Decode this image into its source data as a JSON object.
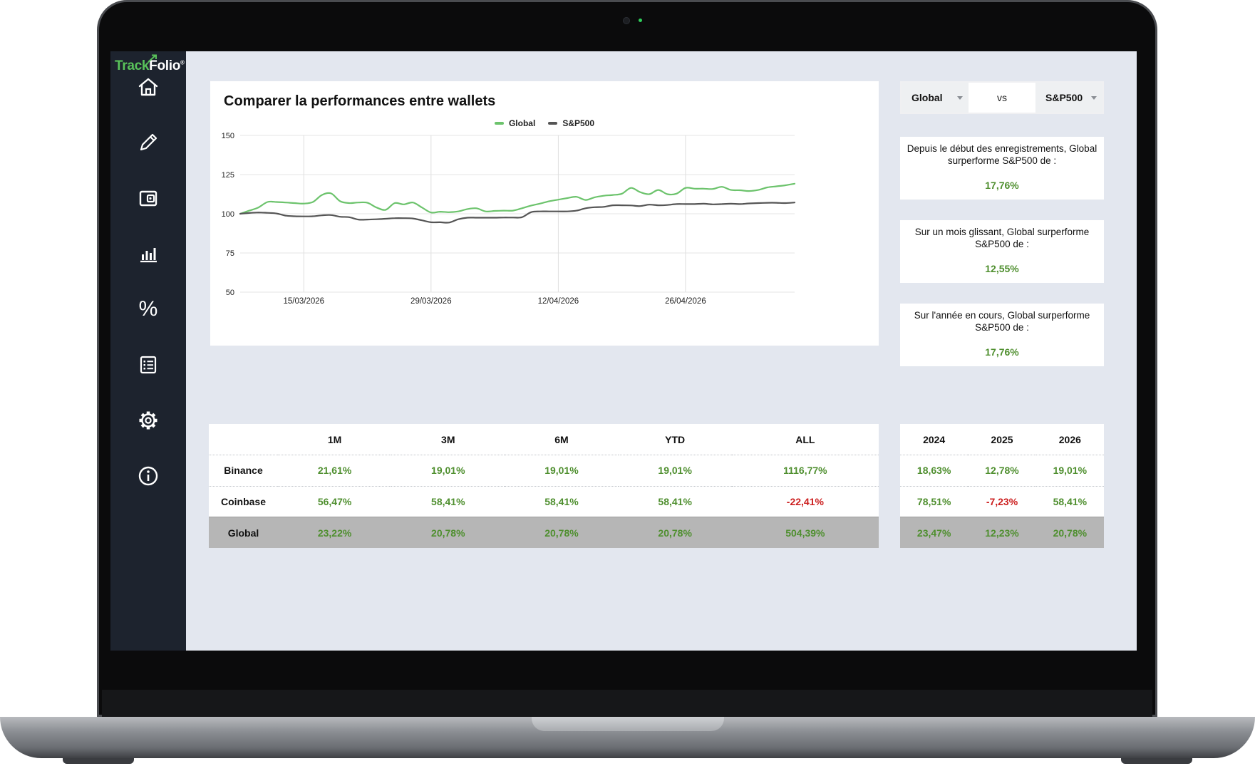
{
  "app": {
    "logo_track": "Track",
    "logo_folio": "Folio",
    "logo_mark": "®"
  },
  "sidebar": {
    "items": [
      {
        "icon": "home-icon"
      },
      {
        "icon": "pencil-icon"
      },
      {
        "icon": "wallet-icon"
      },
      {
        "icon": "bar-chart-icon"
      },
      {
        "icon": "percent-icon",
        "glyph": "%"
      },
      {
        "icon": "list-icon"
      },
      {
        "icon": "gear-icon"
      },
      {
        "icon": "info-icon"
      }
    ]
  },
  "compare": {
    "left_value": "Global",
    "vs_label": "vs",
    "right_value": "S&P500"
  },
  "stats": [
    {
      "text": "Depuis le début des enregistrements, Global surperforme S&P500 de :",
      "value": "17,76%"
    },
    {
      "text": "Sur un mois glissant, Global surperforme S&P500 de :",
      "value": "12,55%"
    },
    {
      "text": "Sur l'année en cours, Global surperforme S&P500 de :",
      "value": "17,76%"
    }
  ],
  "chart_data": {
    "type": "line",
    "title": "Comparer la performances entre wallets",
    "legend_position": "top-center",
    "grid": true,
    "ylim": [
      50,
      150
    ],
    "yticks": [
      150,
      125,
      100,
      75,
      50
    ],
    "xticks": [
      {
        "label": "15/03/2026",
        "date": "2026-03-15"
      },
      {
        "label": "29/03/2026",
        "date": "2026-03-29"
      },
      {
        "label": "12/04/2026",
        "date": "2026-04-12"
      },
      {
        "label": "26/04/2026",
        "date": "2026-04-26"
      }
    ],
    "x": [
      "2026-03-08",
      "2026-03-09",
      "2026-03-10",
      "2026-03-11",
      "2026-03-12",
      "2026-03-13",
      "2026-03-14",
      "2026-03-15",
      "2026-03-16",
      "2026-03-17",
      "2026-03-18",
      "2026-03-19",
      "2026-03-20",
      "2026-03-21",
      "2026-03-22",
      "2026-03-23",
      "2026-03-24",
      "2026-03-25",
      "2026-03-26",
      "2026-03-27",
      "2026-03-28",
      "2026-03-29",
      "2026-03-30",
      "2026-03-31",
      "2026-04-01",
      "2026-04-02",
      "2026-04-03",
      "2026-04-04",
      "2026-04-05",
      "2026-04-06",
      "2026-04-07",
      "2026-04-08",
      "2026-04-09",
      "2026-04-10",
      "2026-04-11",
      "2026-04-12",
      "2026-04-13",
      "2026-04-14",
      "2026-04-15",
      "2026-04-16",
      "2026-04-17",
      "2026-04-18",
      "2026-04-19",
      "2026-04-20",
      "2026-04-21",
      "2026-04-22",
      "2026-04-23",
      "2026-04-24",
      "2026-04-25",
      "2026-04-26",
      "2026-04-27",
      "2026-04-28",
      "2026-04-29",
      "2026-04-30",
      "2026-05-01",
      "2026-05-02",
      "2026-05-03",
      "2026-05-04",
      "2026-05-05",
      "2026-05-06",
      "2026-05-07",
      "2026-05-08"
    ],
    "series": [
      {
        "name": "Global",
        "color": "#6cc36c",
        "values": [
          100,
          102,
          104,
          107.5,
          107.5,
          107.2,
          106.8,
          106.5,
          107.5,
          112,
          113,
          108,
          106.8,
          107.2,
          107,
          104,
          102.5,
          106.8,
          106,
          107.2,
          104,
          100.8,
          101.3,
          101,
          101.5,
          103,
          103.5,
          101.5,
          101.8,
          102,
          102,
          103.5,
          105.2,
          106.5,
          108,
          109,
          110,
          110.8,
          108.8,
          110.5,
          111.5,
          112,
          112.8,
          116.5,
          113.8,
          112.5,
          115.2,
          112.5,
          112.8,
          116.5,
          116,
          116,
          115.8,
          117.2,
          115.2,
          115,
          114.5,
          115.2,
          116.8,
          117.5,
          118.2,
          119.2
        ]
      },
      {
        "name": "S&P500",
        "color": "#555555",
        "values": [
          100,
          100.5,
          100.8,
          100.6,
          100.2,
          98.8,
          98.4,
          98.3,
          98.4,
          99,
          99.2,
          98.1,
          97.8,
          96.3,
          96.3,
          96.5,
          96.8,
          97.2,
          97.2,
          97,
          95.8,
          94.6,
          94.6,
          94.4,
          96.5,
          97.5,
          97.5,
          97.5,
          97.5,
          97.6,
          97.6,
          97.8,
          101,
          101.5,
          101.5,
          101.5,
          101.5,
          102,
          103.5,
          104.2,
          104.4,
          105.4,
          105.4,
          105.3,
          104.9,
          105.8,
          105.4,
          105.6,
          106.2,
          106.2,
          106.2,
          106.4,
          106,
          106.2,
          106.4,
          106.2,
          106.6,
          106.8,
          107,
          107,
          106.8,
          107.2
        ]
      }
    ]
  },
  "perf_table": {
    "headers": [
      "",
      "1M",
      "3M",
      "6M",
      "YTD",
      "ALL"
    ],
    "rows": [
      {
        "label": "Binance",
        "cells": [
          "21,61%",
          "19,01%",
          "19,01%",
          "19,01%",
          "1116,77%"
        ]
      },
      {
        "label": "Coinbase",
        "cells": [
          "56,47%",
          "58,41%",
          "58,41%",
          "58,41%",
          "-22,41%"
        ]
      }
    ],
    "total": {
      "label": "Global",
      "cells": [
        "23,22%",
        "20,78%",
        "20,78%",
        "20,78%",
        "504,39%"
      ]
    }
  },
  "year_table": {
    "headers": [
      "2024",
      "2025",
      "2026"
    ],
    "rows": [
      {
        "cells": [
          "18,63%",
          "12,78%",
          "19,01%"
        ]
      },
      {
        "cells": [
          "78,51%",
          "-7,23%",
          "58,41%"
        ]
      }
    ],
    "total": {
      "cells": [
        "23,47%",
        "12,23%",
        "20,78%"
      ]
    }
  },
  "colors": {
    "positive": "#4f8f2f",
    "negative": "#cc2020",
    "sidebar_bg": "#1d232e",
    "page_bg": "#e3e7ef",
    "logo_green": "#59c25a"
  }
}
